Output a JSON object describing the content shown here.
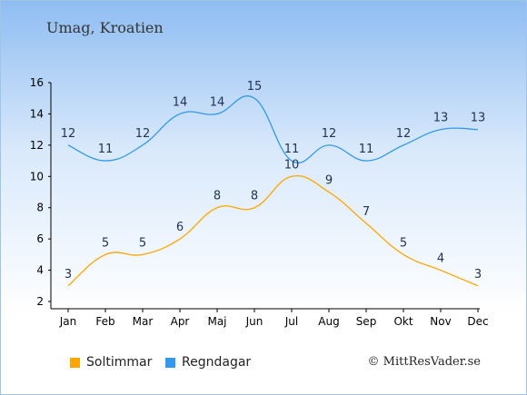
{
  "location": "Umag, Kroatien",
  "copyright": "© MittResVader.se",
  "chart_data": {
    "type": "line",
    "categories": [
      "Jan",
      "Feb",
      "Mar",
      "Apr",
      "Maj",
      "Jun",
      "Jul",
      "Aug",
      "Sep",
      "Okt",
      "Nov",
      "Dec"
    ],
    "ylim": [
      2,
      16
    ],
    "yticks": [
      2,
      4,
      6,
      8,
      10,
      12,
      14,
      16
    ],
    "grid": false,
    "legend_position": "bottom",
    "series": [
      {
        "name": "Soltimmar",
        "color": "#ffa500",
        "values": [
          3,
          5,
          5,
          6,
          8,
          8,
          10,
          9,
          7,
          5,
          4,
          3
        ]
      },
      {
        "name": "Regndagar",
        "color": "#3399ee",
        "values": [
          12,
          11,
          12,
          14,
          14,
          15,
          11,
          12,
          11,
          12,
          13,
          13
        ]
      }
    ]
  }
}
